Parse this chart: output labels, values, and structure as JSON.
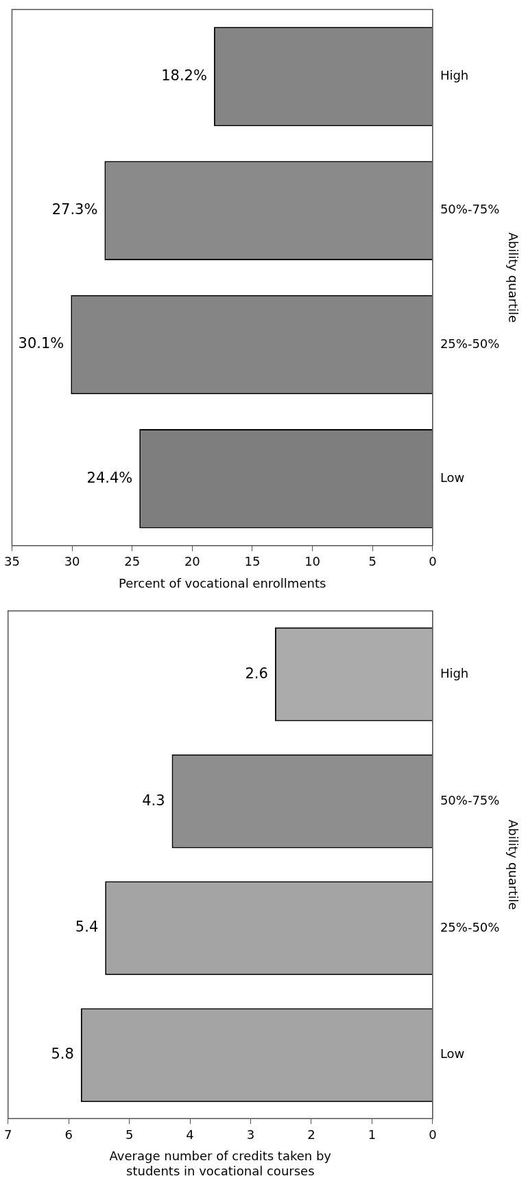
{
  "chart_data": [
    {
      "type": "bar",
      "orientation": "horizontal",
      "xlabel": "Percent of vocational enrollments",
      "ylabel": "Ability quartile",
      "categories": [
        "High",
        "50%-75%",
        "25%-50%",
        "Low"
      ],
      "values": [
        18.2,
        27.3,
        30.1,
        24.4
      ],
      "value_labels": [
        "18.2%",
        "27.3%",
        "30.1%",
        "24.4%"
      ],
      "colors": [
        "#858585",
        "#8a8a8a",
        "#858585",
        "#7e7e7e"
      ],
      "xlim": [
        35,
        0
      ],
      "xticks": [
        35,
        30,
        25,
        20,
        15,
        10,
        5,
        0
      ]
    },
    {
      "type": "bar",
      "orientation": "horizontal",
      "xlabel": "Average number of credits taken by students in vocational courses",
      "ylabel": "Ability quartile",
      "categories": [
        "High",
        "50%-75%",
        "25%-50%",
        "Low"
      ],
      "values": [
        2.6,
        4.3,
        5.4,
        5.8
      ],
      "data_labels": true,
      "colors": [
        "#ababab",
        "#8e8e8e",
        "#a4a4a4",
        "#a4a4a4"
      ],
      "xlim": [
        7,
        0
      ],
      "xticks": [
        7,
        6,
        5,
        4,
        3,
        2,
        1,
        0
      ]
    }
  ]
}
